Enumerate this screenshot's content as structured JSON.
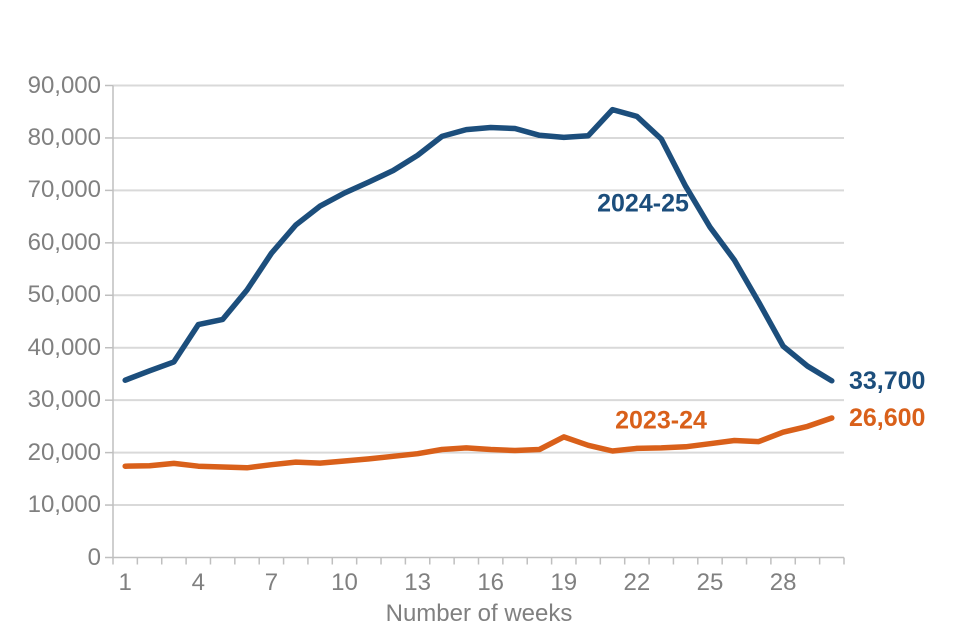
{
  "chart_data": {
    "type": "line",
    "title": "",
    "xlabel": "Number of weeks",
    "ylabel": "",
    "x": [
      1,
      2,
      3,
      4,
      5,
      6,
      7,
      8,
      9,
      10,
      11,
      12,
      13,
      14,
      15,
      16,
      17,
      18,
      19,
      20,
      21,
      22,
      23,
      24,
      25,
      26,
      27,
      28,
      29,
      30
    ],
    "xticks": [
      1,
      4,
      7,
      10,
      13,
      16,
      19,
      22,
      25,
      28
    ],
    "xtick_labels": [
      "1",
      "4",
      "7",
      "10",
      "13",
      "16",
      "19",
      "22",
      "25",
      "28"
    ],
    "ylim": [
      0,
      90000
    ],
    "ytick_step": 10000,
    "ytick_labels": [
      "0",
      "10,000",
      "20,000",
      "30,000",
      "40,000",
      "50,000",
      "60,000",
      "70,000",
      "80,000",
      "90,000"
    ],
    "grid": "horizontal",
    "legend": "inline-series-labels",
    "series": [
      {
        "name": "2024-25",
        "color": "#1C4E7C",
        "end_label": "33,700",
        "values": [
          33800,
          35600,
          37300,
          44400,
          45400,
          51000,
          58000,
          63400,
          67000,
          69500,
          71600,
          73800,
          76700,
          80300,
          81600,
          82000,
          81800,
          80500,
          80100,
          80400,
          85400,
          84100,
          79800,
          70800,
          63000,
          56700,
          48700,
          40300,
          36500,
          33700
        ]
      },
      {
        "name": "2023-24",
        "color": "#D9601A",
        "end_label": "26,600",
        "values": [
          17400,
          17500,
          17950,
          17400,
          17250,
          17100,
          17700,
          18200,
          18000,
          18400,
          18800,
          19300,
          19800,
          20600,
          20900,
          20600,
          20400,
          20600,
          23000,
          21400,
          20300,
          20800,
          20900,
          21100,
          21700,
          22300,
          22100,
          23900,
          25000,
          26600
        ]
      }
    ],
    "colors": {
      "gridline": "#D9D9D9",
      "axis": "#BFBFBF",
      "tick_text": "#808080"
    }
  }
}
